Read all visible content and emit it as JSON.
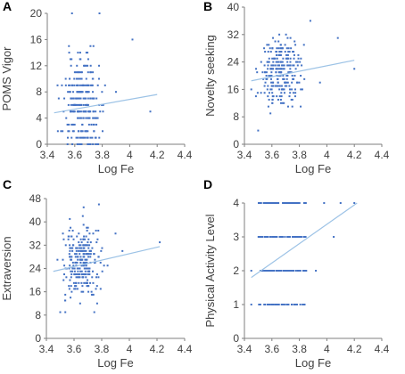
{
  "chart_data": [
    {
      "type": "scatter",
      "panel_label": "A",
      "xlabel": "Log Fe",
      "ylabel": "POMS Vigor",
      "xlim": [
        3.4,
        4.4
      ],
      "ylim": [
        0,
        20
      ],
      "xticks": [
        "3.4",
        "3.6",
        "3.8",
        "4",
        "4.2",
        "4.4"
      ],
      "yticks": [
        "0",
        "4",
        "8",
        "12",
        "16",
        "20"
      ],
      "trendline": {
        "x": [
          3.45,
          4.2
        ],
        "y": [
          4.8,
          7.6
        ]
      },
      "color": "#4472c4",
      "points_desc": "dense vertical columns of points near Log Fe 3.5-3.8; outliers at (3.58,20),(3.78,20),(4.02,16),(4.15,5)"
    },
    {
      "type": "scatter",
      "panel_label": "B",
      "xlabel": "Log Fe",
      "ylabel": "Novelty seeking",
      "xlim": [
        3.4,
        4.4
      ],
      "ylim": [
        0,
        40
      ],
      "xticks": [
        "3.4",
        "3.6",
        "3.8",
        "4",
        "4.2",
        "4.4"
      ],
      "yticks": [
        "0",
        "8",
        "16",
        "24",
        "32",
        "40"
      ],
      "trendline": {
        "x": [
          3.45,
          4.2
        ],
        "y": [
          18.5,
          24.5
        ]
      },
      "color": "#4472c4",
      "points_desc": "points concentrated Log Fe 3.5-3.8, scores 10-34; outliers near (3.5,4),(4.08,31),(4.2,22)"
    },
    {
      "type": "scatter",
      "panel_label": "C",
      "xlabel": "Log Fe",
      "ylabel": "Extraversion",
      "xlim": [
        3.4,
        4.4
      ],
      "ylim": [
        0,
        48
      ],
      "xticks": [
        "3.4",
        "3.6",
        "3.8",
        "4",
        "4.2",
        "4.4"
      ],
      "yticks": [
        "0",
        "8",
        "16",
        "24",
        "32",
        "40",
        "48"
      ],
      "trendline": {
        "x": [
          3.45,
          4.22
        ],
        "y": [
          23,
          31.5
        ]
      },
      "color": "#4472c4",
      "points_desc": "points concentrated Log Fe 3.5-3.8, scores 8-46; outliers near (4.22,33),(3.95,30)"
    },
    {
      "type": "scatter",
      "panel_label": "D",
      "xlabel": "Log Fe",
      "ylabel": "Physical Activity Level",
      "xlim": [
        3.4,
        4.4
      ],
      "ylim": [
        0,
        4
      ],
      "xticks": [
        "3.4",
        "3.6",
        "3.8",
        "4",
        "4.2",
        "4.4"
      ],
      "yticks": [
        "0",
        "1",
        "2",
        "3",
        "4"
      ],
      "trendline": {
        "x": [
          3.45,
          4.22
        ],
        "y": [
          1.8,
          4.0
        ]
      },
      "color": "#4472c4",
      "points_desc": "points on discrete levels 1,2,3,4 spanning Log Fe 3.45-4.2, densest 3.5-3.8"
    }
  ]
}
